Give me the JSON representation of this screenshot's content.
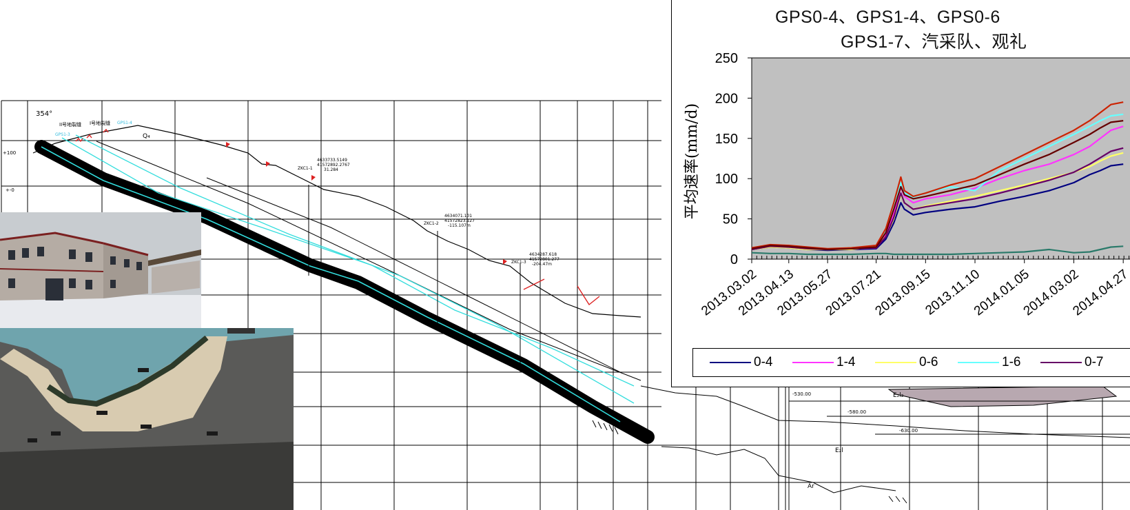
{
  "section": {
    "azimuth": "354°",
    "fissure_labels": [
      "II号地裂缝",
      "I号地裂缝"
    ],
    "gps_labels": [
      "GPS1-3",
      "GPS1-4"
    ],
    "elevation_labels": [
      "+100",
      "+-0"
    ],
    "strata_labels": [
      "Q₄",
      "E₂l₂",
      "E₂l",
      "Ar"
    ],
    "depth_labels": [
      "-530.00",
      "-580.00",
      "-630.00"
    ],
    "boreholes": [
      {
        "name": "ZKC1-1",
        "coord1": "4633733.5149",
        "coord2": "41572892.2767",
        "coord3": "31.284"
      },
      {
        "name": "ZKC1-2",
        "coord1": "4634071.101",
        "coord2": "41572823.127",
        "coord3": "-115.107m"
      },
      {
        "name": "ZKC1-3",
        "coord1": "4634287.618",
        "coord2": "41572801.277",
        "coord3": "-204.47m"
      }
    ]
  },
  "chart_data": {
    "type": "line",
    "title": [
      "GPS0-4、GPS1-4、GPS0-6",
      "GPS1-7、汽采队、观礼"
    ],
    "ylabel": "平均速率(mm/d)",
    "ylim": [
      0,
      250
    ],
    "yticks": [
      0,
      50,
      100,
      150,
      200,
      250
    ],
    "x_tick_labels": [
      "2013.03.02",
      "2013.04.13",
      "2013.05.27",
      "2013.07.21",
      "2013.09.15",
      "2013.11.10",
      "2014.01.05",
      "2014.03.02",
      "2014.04.27"
    ],
    "x": [
      "2013.03.02",
      "2013.03.23",
      "2013.04.13",
      "2013.05.04",
      "2013.05.27",
      "2013.06.23",
      "2013.07.21",
      "2013.08.01",
      "2013.08.10",
      "2013.08.18",
      "2013.08.22",
      "2013.09.01",
      "2013.09.15",
      "2013.10.13",
      "2013.11.10",
      "2013.12.08",
      "2014.01.05",
      "2014.02.02",
      "2014.03.02",
      "2014.03.20",
      "2014.04.01",
      "2014.04.13",
      "2014.04.27"
    ],
    "plot_background": "#c0c0c0",
    "series": [
      {
        "name": "0-4",
        "color": "#000080",
        "values": [
          12,
          15,
          14,
          12,
          11,
          12,
          13,
          25,
          45,
          70,
          62,
          55,
          58,
          62,
          65,
          72,
          78,
          85,
          95,
          105,
          110,
          116,
          118
        ]
      },
      {
        "name": "1-4",
        "color": "#ff33ff",
        "values": [
          13,
          16,
          15,
          13,
          12,
          13,
          14,
          30,
          58,
          90,
          78,
          70,
          75,
          80,
          88,
          100,
          110,
          118,
          130,
          140,
          150,
          160,
          165
        ]
      },
      {
        "name": "0-6",
        "color": "#ffff66",
        "values": [
          12,
          15,
          14,
          12,
          12,
          12,
          16,
          28,
          50,
          80,
          70,
          62,
          66,
          72,
          78,
          85,
          92,
          100,
          108,
          115,
          122,
          128,
          132
        ]
      },
      {
        "name": "1-6",
        "color": "#66ffff",
        "values": [
          13,
          17,
          16,
          14,
          12,
          13,
          15,
          35,
          65,
          95,
          82,
          77,
          82,
          90,
          85,
          110,
          125,
          140,
          155,
          165,
          172,
          178,
          180
        ]
      },
      {
        "name": "0-7",
        "color": "#660066",
        "values": [
          12,
          16,
          15,
          13,
          12,
          13,
          14,
          28,
          52,
          82,
          70,
          62,
          65,
          70,
          75,
          82,
          90,
          98,
          108,
          118,
          126,
          134,
          138
        ]
      },
      {
        "name": "",
        "color": "#cc2200",
        "values": [
          14,
          18,
          17,
          15,
          13,
          14,
          17,
          38,
          70,
          102,
          85,
          78,
          82,
          92,
          100,
          115,
          130,
          145,
          160,
          172,
          182,
          192,
          195
        ]
      },
      {
        "name": "",
        "color": "#660000",
        "values": [
          13,
          17,
          16,
          14,
          12,
          13,
          15,
          33,
          62,
          90,
          80,
          75,
          78,
          85,
          92,
          105,
          118,
          130,
          145,
          155,
          163,
          170,
          172
        ]
      },
      {
        "name": "",
        "color": "#2a7a6a",
        "values": [
          8,
          7,
          7,
          6,
          6,
          6,
          7,
          7,
          6,
          6,
          6,
          6,
          6,
          6,
          7,
          8,
          9,
          12,
          8,
          9,
          12,
          15,
          16
        ]
      }
    ]
  }
}
